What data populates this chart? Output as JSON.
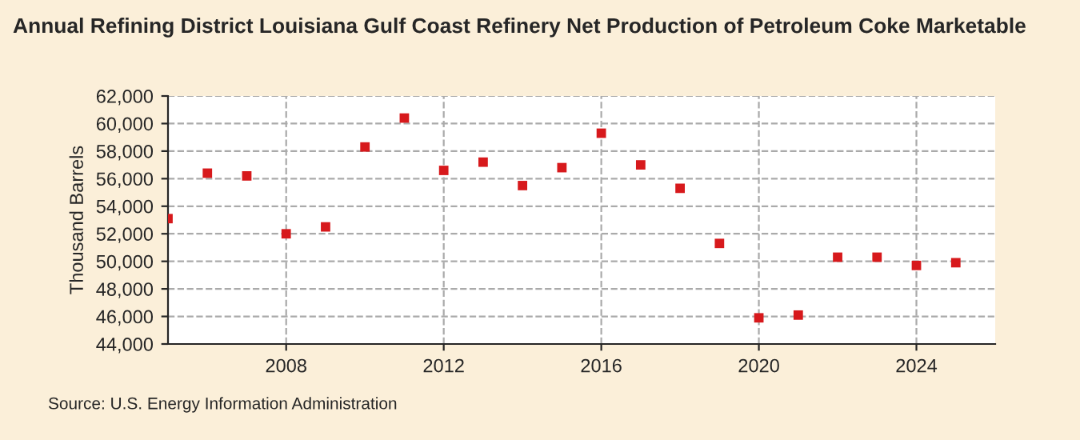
{
  "chart_data": {
    "type": "scatter",
    "title": "Annual Refining District Louisiana Gulf Coast Refinery Net Production of Petroleum Coke Marketable",
    "ylabel": "Thousand Barrels",
    "x": [
      2005,
      2006,
      2007,
      2008,
      2009,
      2010,
      2011,
      2012,
      2013,
      2014,
      2015,
      2016,
      2017,
      2018,
      2019,
      2020,
      2021,
      2022,
      2023,
      2024,
      2025
    ],
    "series": [
      {
        "color": "#d7191c",
        "values": [
          53100,
          56400,
          56200,
          52000,
          52500,
          58300,
          60400,
          56600,
          57200,
          55500,
          56800,
          59300,
          57000,
          55300,
          51300,
          45900,
          46100,
          50300,
          50300,
          49700,
          49900
        ]
      }
    ],
    "xlim": [
      2005,
      2026
    ],
    "xticks": [
      2008,
      2012,
      2016,
      2020,
      2024
    ],
    "ylim": [
      44000,
      62000
    ],
    "yticks": [
      {
        "value": 44000,
        "label": "44,000"
      },
      {
        "value": 46000,
        "label": "46,000"
      },
      {
        "value": 48000,
        "label": "48,000"
      },
      {
        "value": 50000,
        "label": "50,000"
      },
      {
        "value": 52000,
        "label": "52,000"
      },
      {
        "value": 54000,
        "label": "54,000"
      },
      {
        "value": 56000,
        "label": "56,000"
      },
      {
        "value": 58000,
        "label": "58,000"
      },
      {
        "value": 60000,
        "label": "60,000"
      },
      {
        "value": 62000,
        "label": "62,000"
      }
    ],
    "grid": true,
    "marker": "square",
    "annotations": [
      "Source: U.S. Energy Information Administration"
    ]
  }
}
